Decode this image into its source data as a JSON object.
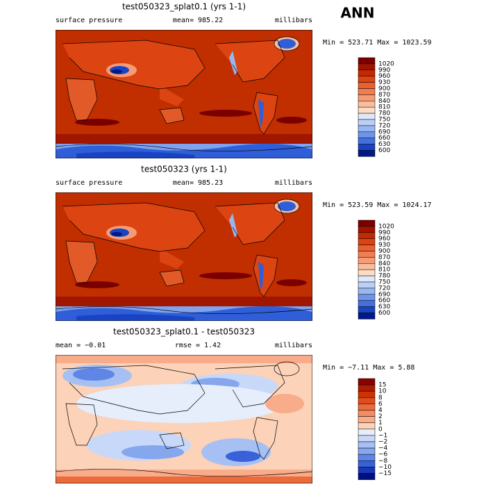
{
  "header": {
    "season": "ANN"
  },
  "panels": [
    {
      "title": "test050323_splat0.1 (yrs 1-1)",
      "left": "surface pressure",
      "center": "mean= 985.22",
      "right": "millibars",
      "stats": "Min = 523.71 Max = 1023.59",
      "colorbar": {
        "labels": [
          "1020",
          "990",
          "960",
          "930",
          "900",
          "870",
          "840",
          "810",
          "780",
          "750",
          "720",
          "690",
          "660",
          "630",
          "600"
        ],
        "colors": [
          "#7a0000",
          "#a31200",
          "#c42a00",
          "#dc4412",
          "#ea6030",
          "#f27d50",
          "#f69c74",
          "#f9bc9c",
          "#fcdcc4",
          "#dfe8fb",
          "#bcd0f6",
          "#98b6f0",
          "#6e94ea",
          "#4470de",
          "#1844c4",
          "#001888"
        ]
      }
    },
    {
      "title": "test050323 (yrs 1-1)",
      "left": "surface pressure",
      "center": "mean= 985.23",
      "right": "millibars",
      "stats": "Min = 523.59 Max = 1024.17",
      "colorbar": {
        "labels": [
          "1020",
          "990",
          "960",
          "930",
          "900",
          "870",
          "840",
          "810",
          "780",
          "750",
          "720",
          "690",
          "660",
          "630",
          "600"
        ],
        "colors": [
          "#7a0000",
          "#a31200",
          "#c42a00",
          "#dc4412",
          "#ea6030",
          "#f27d50",
          "#f69c74",
          "#f9bc9c",
          "#fcdcc4",
          "#dfe8fb",
          "#bcd0f6",
          "#98b6f0",
          "#6e94ea",
          "#4470de",
          "#1844c4",
          "#001888"
        ]
      }
    },
    {
      "title": "test050323_splat0.1 - test050323",
      "left": "mean =  −0.01",
      "center": "rmse =   1.42",
      "right": "millibars",
      "stats": "Min =  −7.11 Max =   5.88",
      "colorbar": {
        "labels": [
          "15",
          "10",
          "8",
          "6",
          "4",
          "2",
          "1",
          "0",
          "−1",
          "−2",
          "−4",
          "−6",
          "−8",
          "−10",
          "−15"
        ],
        "colors": [
          "#8a0000",
          "#b01a00",
          "#cc3300",
          "#e04c1c",
          "#ec6a3c",
          "#f48c62",
          "#f8ac8a",
          "#fcd2b8",
          "#e6eefc",
          "#c8d8f8",
          "#a6c0f4",
          "#86a6ee",
          "#5f86e6",
          "#3a62d8",
          "#1838b8",
          "#001080"
        ]
      }
    }
  ]
}
